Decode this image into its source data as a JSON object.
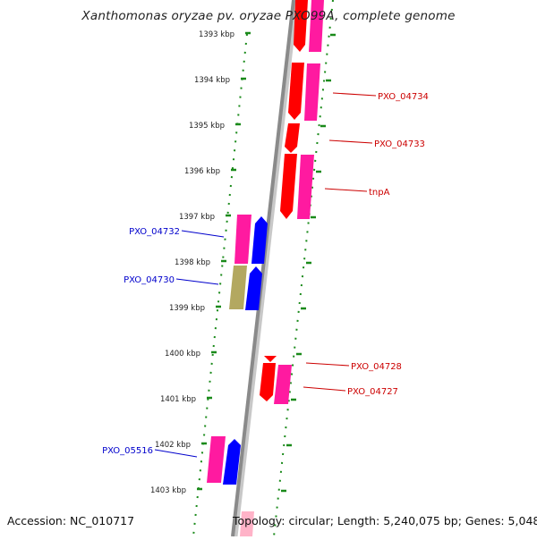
{
  "title": "Xanthomonas oryzae pv. oryzae PXO99A, complete genome",
  "footer": {
    "accession": "Accession: NC_010717",
    "summary": "Topology: circular; Length: 5,240,075 bp; Genes: 5,048"
  },
  "colors": {
    "backbone": "#8a8a8a",
    "tick": "#1a8a1a",
    "forward_label": "#cc0000",
    "reverse_label": "#0000cc",
    "gene_red": "#ff0000",
    "gene_pink": "#ff1aa0",
    "gene_blue": "#0000ff",
    "gene_olive": "#b3a860"
  },
  "kbp_labels": [
    "1393 kbp",
    "1394 kbp",
    "1395 kbp",
    "1396 kbp",
    "1397 kbp",
    "1398 kbp",
    "1399 kbp",
    "1400 kbp",
    "1401 kbp",
    "1402 kbp",
    "1403 kbp"
  ],
  "gene_labels": [
    {
      "text": "PXO_04734",
      "strand": "forward"
    },
    {
      "text": "PXO_04733",
      "strand": "forward"
    },
    {
      "text": "tnpA",
      "strand": "forward"
    },
    {
      "text": "PXO_04732",
      "strand": "reverse"
    },
    {
      "text": "PXO_04730",
      "strand": "reverse"
    },
    {
      "text": "PXO_04728",
      "strand": "forward"
    },
    {
      "text": "PXO_04727",
      "strand": "forward"
    },
    {
      "text": "PXO_05516",
      "strand": "reverse"
    }
  ]
}
